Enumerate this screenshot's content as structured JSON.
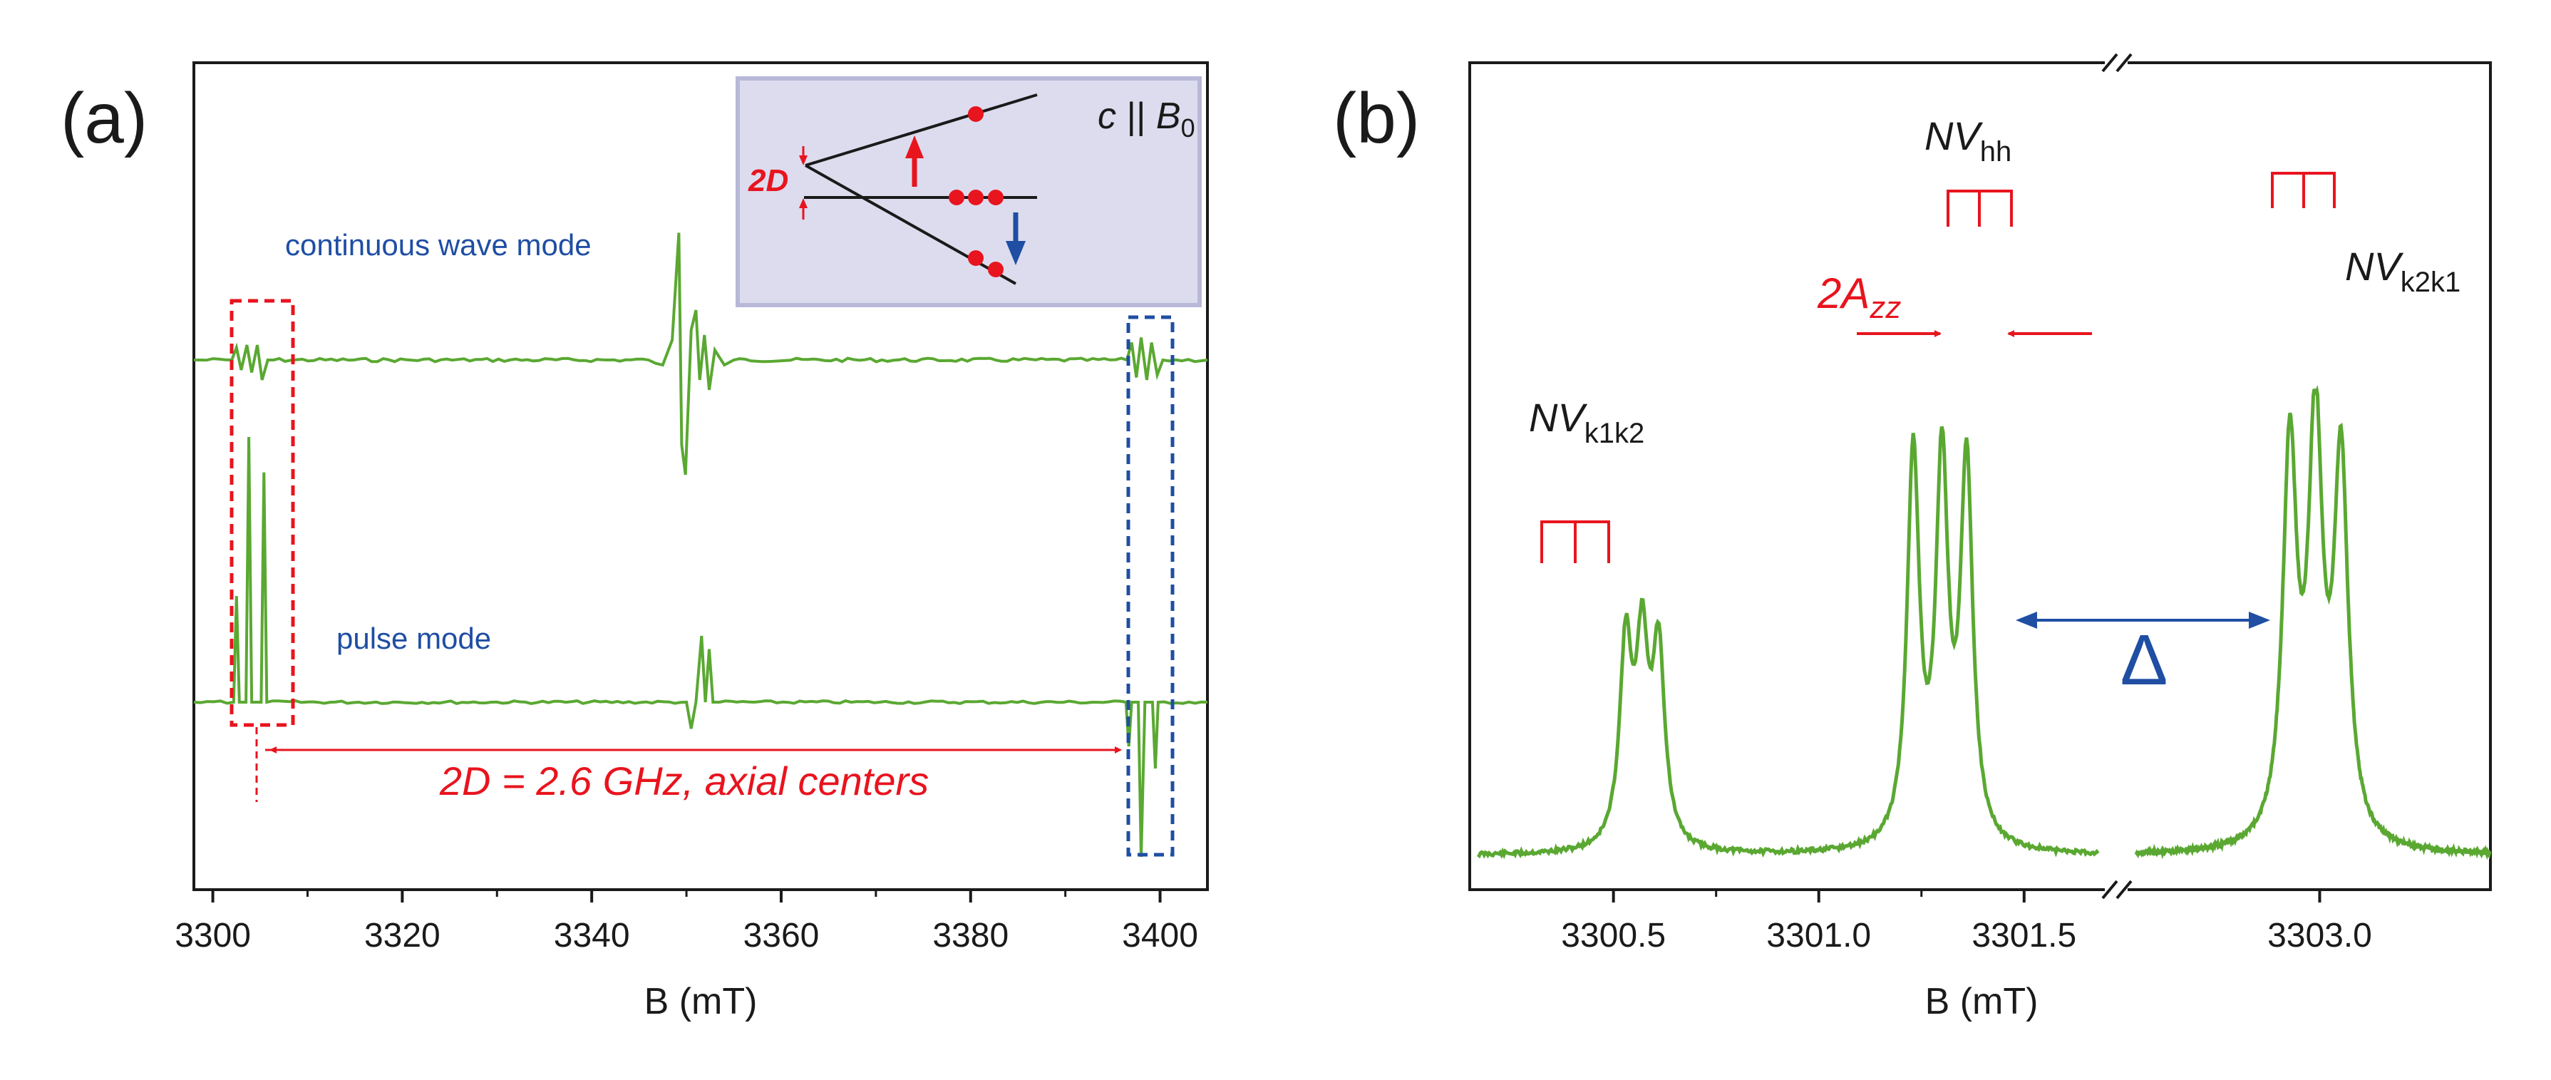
{
  "colors": {
    "trace": "#5aa832",
    "red": "#e8141e",
    "blue": "#1f4ea3",
    "inset_bg": "#dcdcee",
    "inset_border": "#b8b8d8",
    "black": "#1a1a1a"
  },
  "chart_data": [
    {
      "panel": "a",
      "panel_label": "(a)",
      "type": "line",
      "xlabel": "B (mT)",
      "ylabel": "",
      "xlim": [
        3298,
        3405
      ],
      "xticks": [
        3300,
        3320,
        3340,
        3360,
        3380,
        3400
      ],
      "tick_labels": [
        "3300",
        "3320",
        "3340",
        "3360",
        "3380",
        "3400"
      ],
      "series": [
        {
          "name": "continuous wave mode",
          "baseline": 0,
          "points": [
            [
              3298,
              0
            ],
            [
              3302,
              0
            ],
            [
              3302.5,
              0.25
            ],
            [
              3303,
              -0.2
            ],
            [
              3303.6,
              0.3
            ],
            [
              3304.1,
              -0.25
            ],
            [
              3304.7,
              0.3
            ],
            [
              3305.2,
              -0.4
            ],
            [
              3305.8,
              0
            ],
            [
              3346,
              0
            ],
            [
              3347.5,
              -0.1
            ],
            [
              3348.5,
              0.4
            ],
            [
              3349.2,
              2.55
            ],
            [
              3349.5,
              -1.7
            ],
            [
              3349.9,
              -2.3
            ],
            [
              3350.5,
              0.6
            ],
            [
              3351,
              1.0
            ],
            [
              3351.4,
              -0.4
            ],
            [
              3351.9,
              0.5
            ],
            [
              3352.4,
              -0.6
            ],
            [
              3353,
              0.2
            ],
            [
              3354,
              -0.1
            ],
            [
              3355,
              0
            ],
            [
              3396.5,
              0
            ],
            [
              3397,
              0.35
            ],
            [
              3397.5,
              -0.35
            ],
            [
              3398,
              0.45
            ],
            [
              3398.6,
              -0.4
            ],
            [
              3399.1,
              0.35
            ],
            [
              3399.7,
              -0.3
            ],
            [
              3400.3,
              0
            ],
            [
              3405,
              0
            ]
          ]
        },
        {
          "name": "pulse mode",
          "baseline": 0,
          "points": [
            [
              3298,
              0
            ],
            [
              3302.2,
              0
            ],
            [
              3302.5,
              2.4
            ],
            [
              3302.8,
              0
            ],
            [
              3303.5,
              0
            ],
            [
              3303.8,
              6.0
            ],
            [
              3304.1,
              0
            ],
            [
              3305.1,
              0
            ],
            [
              3305.4,
              5.2
            ],
            [
              3305.7,
              0
            ],
            [
              3350,
              0
            ],
            [
              3350.5,
              -0.6
            ],
            [
              3351,
              0
            ],
            [
              3351.6,
              1.5
            ],
            [
              3352,
              0
            ],
            [
              3352.4,
              1.2
            ],
            [
              3352.8,
              0
            ],
            [
              3353.5,
              0
            ],
            [
              3396.4,
              0
            ],
            [
              3396.7,
              -1.0
            ],
            [
              3397,
              0
            ],
            [
              3397.7,
              0
            ],
            [
              3398,
              -3.5
            ],
            [
              3398.4,
              0
            ],
            [
              3399.2,
              0
            ],
            [
              3399.5,
              -1.5
            ],
            [
              3399.8,
              0
            ],
            [
              3405,
              0
            ]
          ]
        }
      ],
      "annotations": {
        "cw_label": "continuous wave mode",
        "pulse_label": "pulse mode",
        "axial_label": "2D = 2.6 GHz, axial centers"
      },
      "inset": {
        "title_c": "c",
        "title_parallel": " || ",
        "title_B": "B",
        "title_sub": "0",
        "splitting_label": "2D"
      }
    },
    {
      "panel": "b",
      "panel_label": "(b)",
      "type": "line",
      "xlabel": "B (mT)",
      "ylabel": "",
      "axis_break": true,
      "xticks": [
        "3300.5",
        "3301.0",
        "3301.5",
        "3303.0"
      ],
      "series": [
        {
          "name": "NV spectrum left segment",
          "x_range": [
            3300.15,
            3301.7
          ],
          "peaks": [
            {
              "center": 3300.61,
              "height": 0.62
            },
            {
              "center": 3300.57,
              "height": 0.61
            },
            {
              "center": 3300.53,
              "height": 0.64
            },
            {
              "center": 3301.23,
              "height": 1.26
            },
            {
              "center": 3301.3,
              "height": 1.21
            },
            {
              "center": 3301.36,
              "height": 1.23
            }
          ]
        },
        {
          "name": "NV spectrum right segment",
          "x_range": [
            3302.55,
            3303.4
          ],
          "peaks": [
            {
              "center": 3303.05,
              "height": 1.22
            },
            {
              "center": 3302.99,
              "height": 1.31
            },
            {
              "center": 3302.93,
              "height": 1.26
            }
          ]
        }
      ],
      "annotations": {
        "nv_k1k2": "NV",
        "nv_k1k2_sub": "k1k2",
        "nv_hh": "NV",
        "nv_hh_sub": "hh",
        "nv_k2k1": "NV",
        "nv_k2k1_sub": "k2k1",
        "azz_pre": "2A",
        "azz_sub": "zz",
        "delta": "Δ"
      }
    }
  ]
}
